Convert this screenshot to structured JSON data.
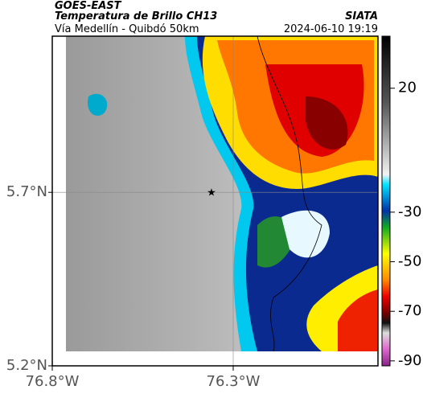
{
  "header": {
    "source": "GOES-EAST",
    "title": "Temperatura de Brillo CH13",
    "subtitle": "Vía Medellín - Quibdó 50km",
    "agency": "SIATA",
    "datetime": "2024-06-10 19:19"
  },
  "map": {
    "xlim": [
      -76.8,
      -75.9
    ],
    "ylim": [
      5.2,
      6.15
    ],
    "xticks": [
      {
        "value": -76.8,
        "label": "76.8°W"
      },
      {
        "value": -76.3,
        "label": "76.3°W"
      }
    ],
    "yticks": [
      {
        "value": 5.7,
        "label": "5.7°N"
      },
      {
        "value": 5.2,
        "label": "5.2°N"
      }
    ],
    "grid": true
  },
  "colorbar": {
    "clim": [
      -92,
      41
    ],
    "ticks": [
      20,
      -30,
      -50,
      -70,
      -90
    ]
  }
}
